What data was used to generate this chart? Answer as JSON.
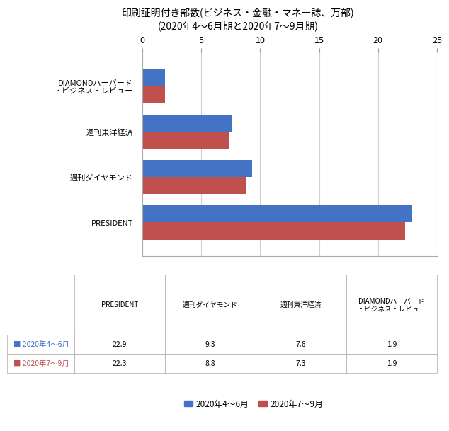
{
  "title_line1": "印刷証明付き部数(ビジネス・金融・マネー誌、万部)",
  "title_line2": "(2020年4〜6月期と2020年7〜9月期)",
  "categories": [
    "PRESIDENT",
    "週刊ダイヤモンド",
    "週刊東洋経済",
    "DIAMONDハーバード\n・ビジネス・レビュー"
  ],
  "series1_label": "2020年4〜6月",
  "series2_label": "2020年7〜9月",
  "series1_values": [
    22.9,
    9.3,
    7.6,
    1.9
  ],
  "series2_values": [
    22.3,
    8.8,
    7.3,
    1.9
  ],
  "color1": "#4472C4",
  "color2": "#C0504D",
  "xlim": [
    0,
    25
  ],
  "xticks": [
    0,
    5,
    10,
    15,
    20,
    25
  ],
  "bar_height": 0.38,
  "table_col_labels": [
    "PRESIDENT",
    "週刊ダイヤモンド",
    "週刊東洋経済",
    "DIAMONDハーバード\n・ビジネス・レビュー"
  ],
  "table_row_labels": [
    "2020年4〜6月",
    "2020年7〜9月"
  ],
  "table_data": [
    [
      22.9,
      9.3,
      7.6,
      1.9
    ],
    [
      22.3,
      8.8,
      7.3,
      1.9
    ]
  ],
  "background_color": "#FFFFFF",
  "grid_color": "#D0D0D0"
}
